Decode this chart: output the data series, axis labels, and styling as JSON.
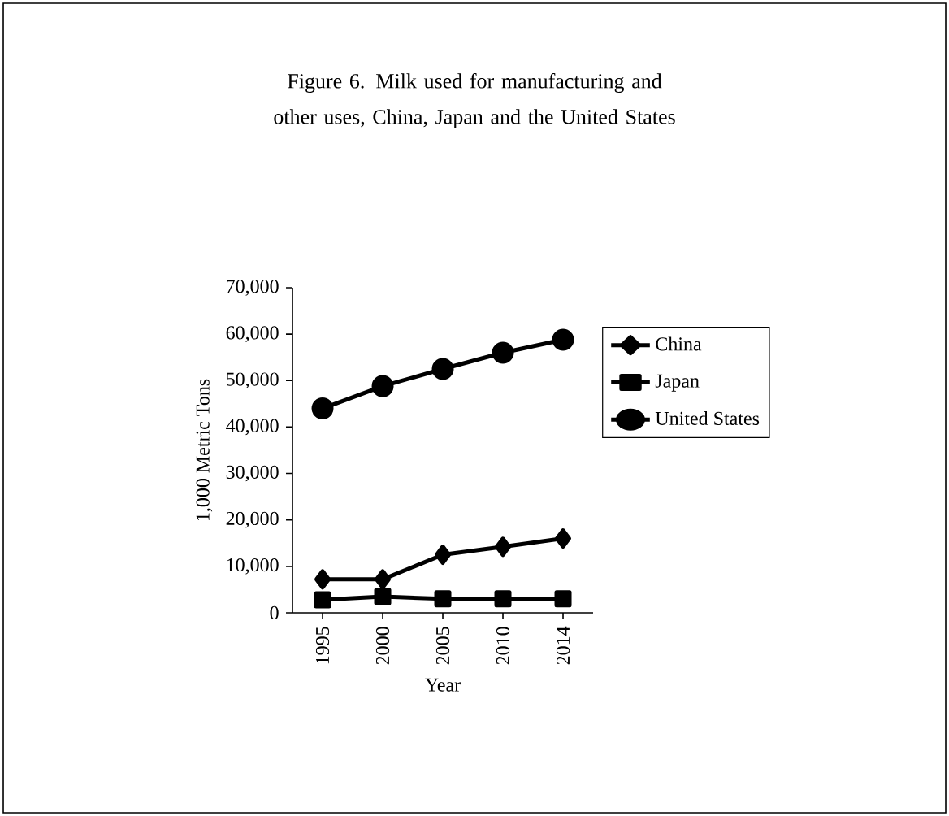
{
  "chart_data": {
    "type": "line",
    "title": "Figure 6. Milk used for manufacturing and other uses, China, Japan and the United States",
    "xlabel": "Year",
    "ylabel": "1,000 Metric Tons",
    "categories": [
      "1995",
      "2000",
      "2005",
      "2010",
      "2014"
    ],
    "series": [
      {
        "name": "China",
        "color": "#000000",
        "marker": "diamond",
        "values": [
          7200,
          7200,
          12500,
          14200,
          16000
        ]
      },
      {
        "name": "Japan",
        "color": "#000000",
        "marker": "square",
        "values": [
          2800,
          3500,
          3000,
          3000,
          3000
        ]
      },
      {
        "name": "United States",
        "color": "#000000",
        "marker": "circle",
        "values": [
          44000,
          48800,
          52500,
          56000,
          58800
        ]
      }
    ],
    "ylim": [
      0,
      70000
    ],
    "yticks": [
      0,
      {
        "value": 10000,
        "label": "10,000"
      },
      {
        "value": 20000,
        "label": "20,000"
      },
      {
        "value": 30000,
        "label": "30,000"
      },
      {
        "value": 40000,
        "label": "40,000"
      },
      {
        "value": 50000,
        "label": "50,000"
      },
      {
        "value": 60000,
        "label": "60,000"
      },
      {
        "value": 70000,
        "label": "70,000"
      }
    ],
    "legend": "right",
    "grid": false,
    "line_style": "solid"
  }
}
